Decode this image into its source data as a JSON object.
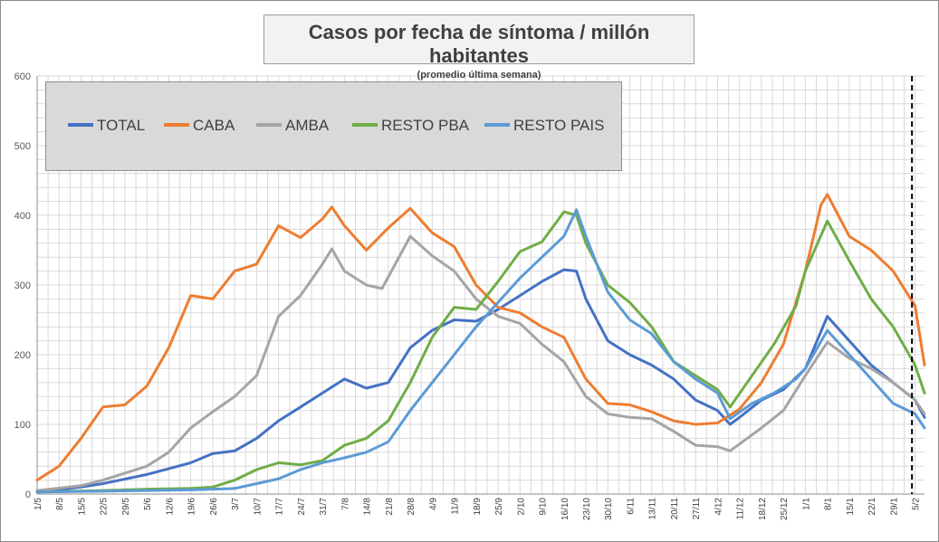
{
  "chart_data": {
    "type": "line",
    "title": "Casos por fecha de síntoma / millón habitantes",
    "subtitle": "(promedio última semana)",
    "xlabel": "",
    "ylabel": "",
    "ylim": [
      0,
      600
    ],
    "y_ticks": [
      "0",
      "100",
      "200",
      "300",
      "400",
      "500",
      "600"
    ],
    "x_ticks": [
      "1/5",
      "8/5",
      "15/5",
      "22/5",
      "29/5",
      "5/6",
      "12/6",
      "19/6",
      "26/6",
      "3/7",
      "10/7",
      "17/7",
      "24/7",
      "31/7",
      "7/8",
      "14/8",
      "21/8",
      "28/8",
      "4/9",
      "11/9",
      "18/9",
      "25/9",
      "2/10",
      "9/10",
      "16/10",
      "23/10",
      "30/10",
      "6/11",
      "13/11",
      "20/11",
      "27/11",
      "4/12",
      "11/12",
      "18/12",
      "25/12",
      "1/1",
      "8/1",
      "15/1",
      "22/1",
      "29/1",
      "5/2"
    ],
    "x_days_from_start": [
      0,
      7,
      14,
      21,
      28,
      35,
      42,
      49,
      56,
      63,
      70,
      77,
      84,
      91,
      98,
      105,
      112,
      119,
      126,
      133,
      140,
      147,
      154,
      161,
      168,
      175,
      182,
      189,
      196,
      203,
      210,
      217,
      224,
      231,
      238,
      245,
      252,
      259,
      266,
      273,
      280
    ],
    "x_max_day": 283,
    "marker_day": 279,
    "grid": true,
    "legend_position": "top-left",
    "series": [
      {
        "name": "TOTAL",
        "color": "#4472c4",
        "points": [
          [
            0,
            3
          ],
          [
            14,
            10
          ],
          [
            21,
            15
          ],
          [
            35,
            28
          ],
          [
            49,
            45
          ],
          [
            56,
            58
          ],
          [
            63,
            62
          ],
          [
            70,
            80
          ],
          [
            77,
            105
          ],
          [
            84,
            125
          ],
          [
            91,
            145
          ],
          [
            98,
            165
          ],
          [
            105,
            152
          ],
          [
            112,
            160
          ],
          [
            119,
            210
          ],
          [
            126,
            235
          ],
          [
            133,
            250
          ],
          [
            140,
            248
          ],
          [
            147,
            265
          ],
          [
            154,
            285
          ],
          [
            161,
            305
          ],
          [
            168,
            322
          ],
          [
            172,
            320
          ],
          [
            175,
            280
          ],
          [
            182,
            220
          ],
          [
            189,
            200
          ],
          [
            196,
            185
          ],
          [
            203,
            165
          ],
          [
            210,
            135
          ],
          [
            217,
            120
          ],
          [
            221,
            100
          ],
          [
            224,
            110
          ],
          [
            231,
            135
          ],
          [
            238,
            150
          ],
          [
            245,
            180
          ],
          [
            252,
            255
          ],
          [
            259,
            220
          ],
          [
            266,
            185
          ],
          [
            273,
            160
          ],
          [
            280,
            135
          ],
          [
            283,
            110
          ]
        ]
      },
      {
        "name": "CABA",
        "color": "#ed7d31",
        "points": [
          [
            0,
            20
          ],
          [
            7,
            40
          ],
          [
            14,
            80
          ],
          [
            21,
            125
          ],
          [
            28,
            128
          ],
          [
            35,
            155
          ],
          [
            42,
            210
          ],
          [
            49,
            285
          ],
          [
            56,
            280
          ],
          [
            63,
            320
          ],
          [
            70,
            330
          ],
          [
            77,
            385
          ],
          [
            84,
            368
          ],
          [
            91,
            395
          ],
          [
            94,
            412
          ],
          [
            98,
            385
          ],
          [
            105,
            350
          ],
          [
            112,
            382
          ],
          [
            119,
            410
          ],
          [
            126,
            375
          ],
          [
            133,
            355
          ],
          [
            140,
            300
          ],
          [
            147,
            268
          ],
          [
            154,
            260
          ],
          [
            161,
            240
          ],
          [
            168,
            225
          ],
          [
            175,
            165
          ],
          [
            182,
            130
          ],
          [
            189,
            128
          ],
          [
            196,
            118
          ],
          [
            203,
            105
          ],
          [
            210,
            100
          ],
          [
            217,
            102
          ],
          [
            224,
            122
          ],
          [
            231,
            160
          ],
          [
            238,
            215
          ],
          [
            245,
            320
          ],
          [
            250,
            415
          ],
          [
            252,
            430
          ],
          [
            259,
            370
          ],
          [
            266,
            350
          ],
          [
            273,
            320
          ],
          [
            280,
            270
          ],
          [
            283,
            185
          ]
        ]
      },
      {
        "name": "AMBA",
        "color": "#a5a5a5",
        "points": [
          [
            0,
            5
          ],
          [
            14,
            12
          ],
          [
            21,
            20
          ],
          [
            28,
            30
          ],
          [
            35,
            40
          ],
          [
            42,
            60
          ],
          [
            49,
            95
          ],
          [
            56,
            118
          ],
          [
            63,
            140
          ],
          [
            70,
            170
          ],
          [
            77,
            255
          ],
          [
            84,
            285
          ],
          [
            91,
            330
          ],
          [
            94,
            352
          ],
          [
            98,
            320
          ],
          [
            105,
            300
          ],
          [
            110,
            295
          ],
          [
            119,
            370
          ],
          [
            126,
            342
          ],
          [
            133,
            320
          ],
          [
            140,
            280
          ],
          [
            147,
            255
          ],
          [
            154,
            245
          ],
          [
            161,
            215
          ],
          [
            168,
            190
          ],
          [
            175,
            140
          ],
          [
            182,
            115
          ],
          [
            189,
            110
          ],
          [
            196,
            108
          ],
          [
            203,
            90
          ],
          [
            210,
            70
          ],
          [
            217,
            68
          ],
          [
            221,
            62
          ],
          [
            231,
            95
          ],
          [
            238,
            120
          ],
          [
            245,
            170
          ],
          [
            252,
            218
          ],
          [
            259,
            195
          ],
          [
            266,
            180
          ],
          [
            273,
            160
          ],
          [
            280,
            135
          ],
          [
            283,
            115
          ]
        ]
      },
      {
        "name": "RESTO PBA",
        "color": "#70ad47",
        "points": [
          [
            0,
            3
          ],
          [
            21,
            5
          ],
          [
            35,
            7
          ],
          [
            49,
            8
          ],
          [
            56,
            10
          ],
          [
            63,
            20
          ],
          [
            70,
            35
          ],
          [
            77,
            45
          ],
          [
            84,
            42
          ],
          [
            91,
            48
          ],
          [
            98,
            70
          ],
          [
            105,
            80
          ],
          [
            112,
            105
          ],
          [
            119,
            160
          ],
          [
            126,
            225
          ],
          [
            133,
            268
          ],
          [
            140,
            265
          ],
          [
            147,
            305
          ],
          [
            154,
            348
          ],
          [
            161,
            362
          ],
          [
            168,
            405
          ],
          [
            172,
            400
          ],
          [
            175,
            360
          ],
          [
            182,
            300
          ],
          [
            189,
            275
          ],
          [
            196,
            240
          ],
          [
            203,
            190
          ],
          [
            210,
            170
          ],
          [
            217,
            150
          ],
          [
            221,
            125
          ],
          [
            228,
            170
          ],
          [
            235,
            215
          ],
          [
            242,
            270
          ],
          [
            245,
            320
          ],
          [
            252,
            392
          ],
          [
            259,
            335
          ],
          [
            266,
            280
          ],
          [
            273,
            240
          ],
          [
            280,
            185
          ],
          [
            283,
            145
          ]
        ]
      },
      {
        "name": "RESTO PAIS",
        "color": "#5b9bd5",
        "points": [
          [
            0,
            3
          ],
          [
            21,
            4
          ],
          [
            35,
            5
          ],
          [
            49,
            6
          ],
          [
            63,
            8
          ],
          [
            70,
            15
          ],
          [
            77,
            22
          ],
          [
            84,
            35
          ],
          [
            91,
            45
          ],
          [
            98,
            52
          ],
          [
            105,
            60
          ],
          [
            112,
            75
          ],
          [
            119,
            120
          ],
          [
            126,
            160
          ],
          [
            133,
            200
          ],
          [
            140,
            240
          ],
          [
            147,
            275
          ],
          [
            154,
            310
          ],
          [
            161,
            340
          ],
          [
            168,
            370
          ],
          [
            172,
            408
          ],
          [
            175,
            370
          ],
          [
            182,
            290
          ],
          [
            189,
            250
          ],
          [
            196,
            230
          ],
          [
            203,
            190
          ],
          [
            210,
            165
          ],
          [
            217,
            145
          ],
          [
            221,
            108
          ],
          [
            228,
            130
          ],
          [
            235,
            145
          ],
          [
            242,
            165
          ],
          [
            245,
            180
          ],
          [
            252,
            235
          ],
          [
            259,
            200
          ],
          [
            266,
            165
          ],
          [
            273,
            130
          ],
          [
            280,
            115
          ],
          [
            283,
            95
          ]
        ]
      }
    ]
  }
}
